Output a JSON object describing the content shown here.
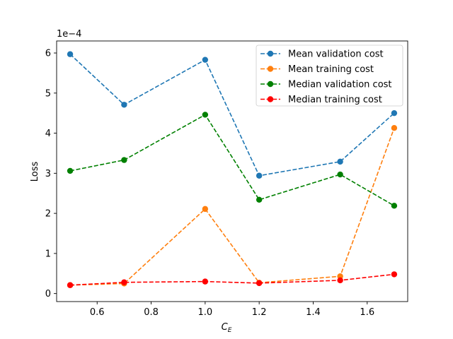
{
  "chart_data": {
    "type": "line",
    "xlabel": "C",
    "xlabel_subscript": "E",
    "ylabel": "Loss",
    "y_offset_text": "1e−4",
    "xlim": [
      0.45,
      1.75
    ],
    "ylim": [
      -0.2,
      6.3
    ],
    "x_ticks": [
      0.6,
      0.8,
      1.0,
      1.2,
      1.4,
      1.6
    ],
    "x_tick_labels": [
      "0.6",
      "0.8",
      "1.0",
      "1.2",
      "1.4",
      "1.6"
    ],
    "y_ticks": [
      0,
      1,
      2,
      3,
      4,
      5,
      6
    ],
    "y_tick_labels": [
      "0",
      "1",
      "2",
      "3",
      "4",
      "5",
      "6"
    ],
    "grid": false,
    "legend_position": "top-right",
    "x": [
      0.5,
      0.7,
      1.0,
      1.2,
      1.5,
      1.7
    ],
    "series": [
      {
        "name": "Mean validation cost",
        "color": "#1f77b4",
        "values": [
          5.97,
          4.71,
          5.83,
          2.94,
          3.29,
          4.5
        ]
      },
      {
        "name": "Mean training cost",
        "color": "#ff7f0e",
        "values": [
          0.21,
          0.25,
          2.11,
          0.27,
          0.43,
          4.13
        ]
      },
      {
        "name": "Median validation cost",
        "color": "#008000",
        "values": [
          3.06,
          3.33,
          4.46,
          2.34,
          2.97,
          2.19
        ]
      },
      {
        "name": "Median training cost",
        "color": "#ff0000",
        "values": [
          0.21,
          0.28,
          0.3,
          0.26,
          0.33,
          0.48
        ]
      }
    ]
  }
}
